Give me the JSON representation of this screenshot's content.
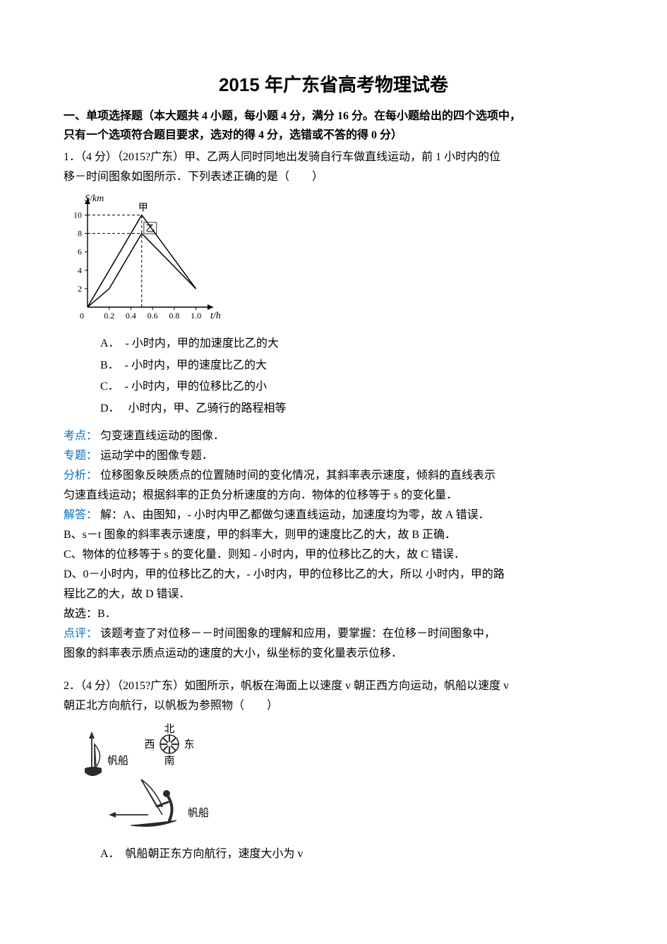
{
  "title": "2015 年广东省高考物理试卷",
  "section1": {
    "heading_l1": "一、单项选择题（本大题共 4 小题，每小题 4 分，满分 16 分。在每小题给出的四个选项中，",
    "heading_l2": "只有一个选项符合题目要求，选对的得 4 分，选错或不答的得 0 分）"
  },
  "q1": {
    "stem_l1": "1．（4 分）（2015?广东）甲、乙两人同时同地出发骑自行车做直线运动，前 1 小时内的位",
    "stem_l2": "移－时间图象如图所示．下列表述正确的是（　　）",
    "chart": {
      "type": "line",
      "y_label": "S/km",
      "x_label": "t/h",
      "x_ticks": [
        "0",
        "0.2",
        "0.4",
        "0.6",
        "0.8",
        "1.0"
      ],
      "y_ticks": [
        "2",
        "4",
        "6",
        "8",
        "10"
      ],
      "xlim": [
        0,
        1.12
      ],
      "ylim": [
        0,
        11.5
      ],
      "axis_color": "#000000",
      "line_color": "#000000",
      "line_width": 1.5,
      "bg_color": "#ffffff",
      "label_fontsize": 14,
      "tick_fontsize": 12,
      "annot_jia": "甲",
      "annot_yi": "乙",
      "series_jia": [
        [
          0,
          0
        ],
        [
          0.5,
          10
        ],
        [
          1.0,
          2
        ]
      ],
      "series_yi": [
        [
          0,
          0
        ],
        [
          0.2,
          2
        ],
        [
          0.5,
          8
        ],
        [
          1.0,
          2
        ]
      ],
      "dash_refs": [
        {
          "from": [
            0,
            10
          ],
          "to": [
            0.5,
            10
          ]
        },
        {
          "from": [
            0,
            8
          ],
          "to": [
            0.5,
            8
          ]
        },
        {
          "from": [
            0.5,
            0
          ],
          "to": [
            0.5,
            10
          ]
        }
      ]
    },
    "options": {
      "A": "A．　- 小时内，甲的加速度比乙的大",
      "B": "B．　- 小时内，甲的速度比乙的大",
      "C": "C．　- 小时内，甲的位移比乙的小",
      "D": "D．　 小时内，甲、乙骑行的路程相等"
    },
    "kd_label": "考点：",
    "kd_text": "匀变速直线运动的图像．",
    "zt_label": "专题：",
    "zt_text": "运动学中的图像专题．",
    "fx_label": "分析：",
    "fx_text_l1": "位移图象反映质点的位置随时间的变化情况，其斜率表示速度，倾斜的直线表示",
    "fx_text_l2": "匀速直线运动；根据斜率的正负分析速度的方向．物体的位移等于 s 的变化量．",
    "jd_label": "解答：",
    "jd_A": "解：A、由图知，- 小时内甲乙都做匀速直线运动，加速度均为零，故 A 错误．",
    "jd_B": "B、s－t 图象的斜率表示速度，甲的斜率大，则甲的速度比乙的大，故 B 正确．",
    "jd_C": "C、物体的位移等于 s 的变化量．则知 - 小时内，甲的位移比乙的大，故 C 错误．",
    "jd_D_l1": "D、0－小时内，甲的位移比乙的大，- 小时内，甲的位移比乙的大，所以 小时内，甲的路",
    "jd_D_l2": "程比乙的大，故 D 错误．",
    "jd_final": "故选：B．",
    "dp_label": "点评：",
    "dp_text_l1": "该题考查了对位移－－时间图象的理解和应用，要掌握：在位移－时间图象中，",
    "dp_text_l2": "图象的斜率表示质点运动的速度的大小，纵坐标的变化量表示位移．"
  },
  "q2": {
    "stem_l1": "2．（4 分）（2015?广东）如图所示，帆板在海面上以速度 v 朝正西方向运动，帆船以速度 v",
    "stem_l2": "朝正北方向航行，以帆板为参照物（　　）",
    "figure": {
      "type": "infographic",
      "compass": {
        "N": "北",
        "S": "南",
        "W": "西",
        "E": "东"
      },
      "sailboat_label": "帆船",
      "sailboard_label": "帆船",
      "colors": {
        "ink": "#2a2a2a",
        "bg": "#ffffff"
      }
    },
    "options": {
      "A": "A．　帆船朝正东方向航行，速度大小为 v"
    }
  }
}
